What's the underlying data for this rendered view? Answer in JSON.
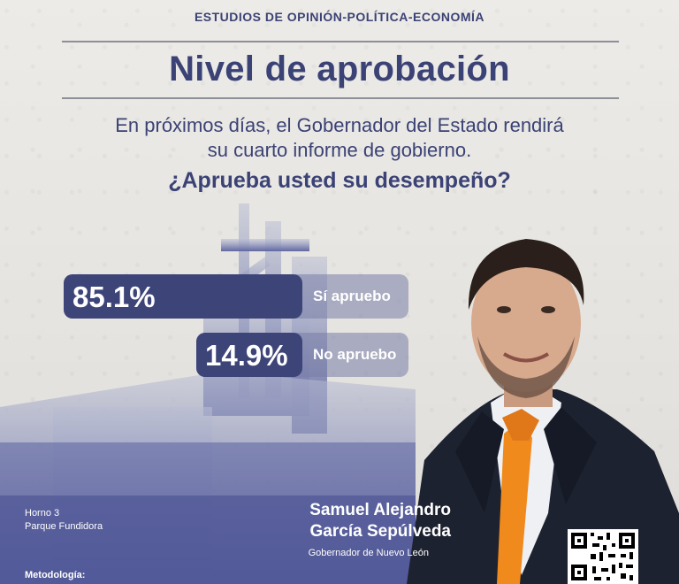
{
  "header": {
    "brand": "ESTUDIOS DE OPINIÓN-POLÍTICA-ECONOMÍA",
    "title": "Nivel de aprobación",
    "subtitle_line1": "En próximos días, el Gobernador del Estado rendirá",
    "subtitle_line2": "su cuarto informe de gobierno.",
    "question": "¿Aprueba usted su desempeño?"
  },
  "results": [
    {
      "percent_label": "85.1%",
      "label": "Sí apruebo",
      "value": 85.1
    },
    {
      "percent_label": "14.9%",
      "label": "No apruebo",
      "value": 14.9
    }
  ],
  "photo_caption": {
    "line1": "Horno 3",
    "line2": "Parque Fundidora"
  },
  "person": {
    "name_line1": "Samuel Alejandro",
    "name_line2": "García Sepúlveda",
    "role": "Gobernador de Nuevo León"
  },
  "footer": {
    "methodology": "Metodología:"
  },
  "colors": {
    "navy": "#3b4275",
    "bar": "#3d4478",
    "tie": "#f08a1c"
  },
  "icons": [
    "qr-code-icon"
  ]
}
